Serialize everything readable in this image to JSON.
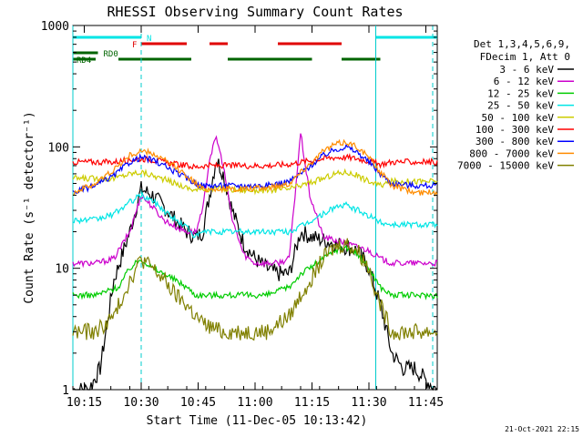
{
  "chart_data": {
    "type": "line",
    "title": "RHESSI Observing Summary Count Rates",
    "xlabel": "Start Time (11-Dec-05 10:13:42)",
    "ylabel": "Count Rate (s⁻¹ detector⁻¹)",
    "x_range_minutes": [
      10.2,
      11.8
    ],
    "x_ticks": [
      {
        "value": 10.25,
        "label": "10:15"
      },
      {
        "value": 10.5,
        "label": "10:30"
      },
      {
        "value": 10.75,
        "label": "10:45"
      },
      {
        "value": 11.0,
        "label": "11:00"
      },
      {
        "value": 11.25,
        "label": "11:15"
      },
      {
        "value": 11.5,
        "label": "11:30"
      },
      {
        "value": 11.75,
        "label": "11:45"
      }
    ],
    "ylim": [
      1,
      1000
    ],
    "y_scale": "log",
    "y_ticks": [
      {
        "value": 1,
        "label": "1"
      },
      {
        "value": 10,
        "label": "10"
      },
      {
        "value": 100,
        "label": "100"
      },
      {
        "value": 1000,
        "label": "1000"
      }
    ],
    "legend_header": [
      "Det 1,3,4,5,6,9,",
      "FDecim 1, Att 0"
    ],
    "series": [
      {
        "name": "3 - 6 keV",
        "color": "#000000",
        "points": [
          [
            10.2,
            1
          ],
          [
            10.27,
            1
          ],
          [
            10.32,
            1.5
          ],
          [
            10.38,
            8
          ],
          [
            10.45,
            20
          ],
          [
            10.5,
            45
          ],
          [
            10.55,
            40
          ],
          [
            10.6,
            32
          ],
          [
            10.65,
            25
          ],
          [
            10.7,
            20
          ],
          [
            10.74,
            18
          ],
          [
            10.77,
            20
          ],
          [
            10.8,
            40
          ],
          [
            10.83,
            80
          ],
          [
            10.86,
            60
          ],
          [
            10.9,
            30
          ],
          [
            10.95,
            16
          ],
          [
            11.0,
            12
          ],
          [
            11.05,
            10
          ],
          [
            11.1,
            9
          ],
          [
            11.15,
            9
          ],
          [
            11.2,
            20
          ],
          [
            11.25,
            18
          ],
          [
            11.3,
            17
          ],
          [
            11.35,
            16
          ],
          [
            11.4,
            15
          ],
          [
            11.45,
            14
          ],
          [
            11.5,
            10
          ],
          [
            11.55,
            5
          ],
          [
            11.6,
            2
          ],
          [
            11.65,
            1.5
          ],
          [
            11.7,
            1.5
          ],
          [
            11.75,
            1.2
          ],
          [
            11.8,
            1
          ]
        ]
      },
      {
        "name": "6 - 12 keV",
        "color": "#cc00cc",
        "points": [
          [
            10.2,
            11
          ],
          [
            10.3,
            11
          ],
          [
            10.38,
            12
          ],
          [
            10.45,
            20
          ],
          [
            10.5,
            40
          ],
          [
            10.55,
            32
          ],
          [
            10.6,
            25
          ],
          [
            10.65,
            22
          ],
          [
            10.7,
            20
          ],
          [
            10.74,
            20
          ],
          [
            10.77,
            30
          ],
          [
            10.8,
            80
          ],
          [
            10.83,
            120
          ],
          [
            10.86,
            70
          ],
          [
            10.9,
            25
          ],
          [
            10.95,
            13
          ],
          [
            11.0,
            11
          ],
          [
            11.05,
            11
          ],
          [
            11.1,
            11
          ],
          [
            11.15,
            12
          ],
          [
            11.2,
            130
          ],
          [
            11.24,
            40
          ],
          [
            11.3,
            18
          ],
          [
            11.35,
            17
          ],
          [
            11.4,
            16
          ],
          [
            11.45,
            15
          ],
          [
            11.5,
            14
          ],
          [
            11.55,
            12
          ],
          [
            11.6,
            11
          ],
          [
            11.7,
            11
          ],
          [
            11.8,
            11
          ]
        ]
      },
      {
        "name": "12 - 25 keV",
        "color": "#00cc00",
        "points": [
          [
            10.2,
            6
          ],
          [
            10.3,
            6
          ],
          [
            10.4,
            7
          ],
          [
            10.45,
            10
          ],
          [
            10.5,
            12
          ],
          [
            10.55,
            10
          ],
          [
            10.6,
            9
          ],
          [
            10.65,
            8
          ],
          [
            10.7,
            7
          ],
          [
            10.74,
            6
          ],
          [
            10.77,
            6
          ],
          [
            10.85,
            6
          ],
          [
            10.95,
            6
          ],
          [
            11.05,
            6
          ],
          [
            11.15,
            7
          ],
          [
            11.2,
            9
          ],
          [
            11.3,
            12
          ],
          [
            11.35,
            14
          ],
          [
            11.4,
            15
          ],
          [
            11.45,
            13
          ],
          [
            11.5,
            10
          ],
          [
            11.55,
            7
          ],
          [
            11.6,
            6
          ],
          [
            11.7,
            6
          ],
          [
            11.8,
            6
          ]
        ]
      },
      {
        "name": "25 - 50 keV",
        "color": "#00e5e5",
        "points": [
          [
            10.2,
            25
          ],
          [
            10.3,
            25
          ],
          [
            10.38,
            28
          ],
          [
            10.45,
            35
          ],
          [
            10.5,
            40
          ],
          [
            10.55,
            36
          ],
          [
            10.6,
            30
          ],
          [
            10.65,
            25
          ],
          [
            10.7,
            22
          ],
          [
            10.74,
            18
          ],
          [
            10.77,
            20
          ],
          [
            10.85,
            20
          ],
          [
            10.95,
            20
          ],
          [
            11.05,
            20
          ],
          [
            11.15,
            20
          ],
          [
            11.2,
            22
          ],
          [
            11.3,
            28
          ],
          [
            11.35,
            32
          ],
          [
            11.4,
            33
          ],
          [
            11.45,
            30
          ],
          [
            11.5,
            27
          ],
          [
            11.55,
            24
          ],
          [
            11.6,
            23
          ],
          [
            11.7,
            23
          ],
          [
            11.8,
            23
          ]
        ]
      },
      {
        "name": "50 - 100 keV",
        "color": "#cccc00",
        "points": [
          [
            10.2,
            55
          ],
          [
            10.3,
            55
          ],
          [
            10.38,
            55
          ],
          [
            10.45,
            60
          ],
          [
            10.5,
            62
          ],
          [
            10.55,
            58
          ],
          [
            10.6,
            54
          ],
          [
            10.65,
            50
          ],
          [
            10.7,
            46
          ],
          [
            10.74,
            44
          ],
          [
            10.77,
            45
          ],
          [
            10.85,
            45
          ],
          [
            10.95,
            44
          ],
          [
            11.05,
            44
          ],
          [
            11.15,
            45
          ],
          [
            11.2,
            48
          ],
          [
            11.3,
            55
          ],
          [
            11.35,
            60
          ],
          [
            11.4,
            62
          ],
          [
            11.45,
            58
          ],
          [
            11.5,
            52
          ],
          [
            11.55,
            48
          ],
          [
            11.6,
            52
          ],
          [
            11.7,
            52
          ],
          [
            11.8,
            52
          ]
        ]
      },
      {
        "name": "100 - 300 keV",
        "color": "#ff0000",
        "points": [
          [
            10.2,
            75
          ],
          [
            10.3,
            75
          ],
          [
            10.38,
            75
          ],
          [
            10.45,
            78
          ],
          [
            10.5,
            80
          ],
          [
            10.55,
            78
          ],
          [
            10.6,
            75
          ],
          [
            10.65,
            72
          ],
          [
            10.7,
            70
          ],
          [
            10.74,
            68
          ],
          [
            10.77,
            70
          ],
          [
            10.85,
            70
          ],
          [
            10.95,
            70
          ],
          [
            11.05,
            70
          ],
          [
            11.15,
            72
          ],
          [
            11.2,
            75
          ],
          [
            11.3,
            80
          ],
          [
            11.35,
            82
          ],
          [
            11.4,
            82
          ],
          [
            11.45,
            80
          ],
          [
            11.5,
            76
          ],
          [
            11.55,
            72
          ],
          [
            11.6,
            75
          ],
          [
            11.7,
            75
          ],
          [
            11.8,
            75
          ]
        ]
      },
      {
        "name": "300 - 800 keV",
        "color": "#0000ff",
        "points": [
          [
            10.2,
            42
          ],
          [
            10.3,
            48
          ],
          [
            10.38,
            58
          ],
          [
            10.45,
            75
          ],
          [
            10.5,
            82
          ],
          [
            10.55,
            78
          ],
          [
            10.6,
            70
          ],
          [
            10.65,
            62
          ],
          [
            10.7,
            55
          ],
          [
            10.74,
            50
          ],
          [
            10.77,
            48
          ],
          [
            10.85,
            48
          ],
          [
            10.95,
            48
          ],
          [
            11.05,
            48
          ],
          [
            11.15,
            52
          ],
          [
            11.2,
            60
          ],
          [
            11.3,
            85
          ],
          [
            11.35,
            95
          ],
          [
            11.4,
            100
          ],
          [
            11.45,
            90
          ],
          [
            11.5,
            75
          ],
          [
            11.55,
            60
          ],
          [
            11.6,
            50
          ],
          [
            11.7,
            48
          ],
          [
            11.8,
            48
          ]
        ]
      },
      {
        "name": "800 - 7000 keV",
        "color": "#ff8c00",
        "points": [
          [
            10.2,
            42
          ],
          [
            10.3,
            50
          ],
          [
            10.38,
            65
          ],
          [
            10.45,
            85
          ],
          [
            10.5,
            92
          ],
          [
            10.55,
            88
          ],
          [
            10.6,
            78
          ],
          [
            10.65,
            68
          ],
          [
            10.7,
            58
          ],
          [
            10.74,
            50
          ],
          [
            10.77,
            45
          ],
          [
            10.85,
            45
          ],
          [
            10.95,
            45
          ],
          [
            11.05,
            46
          ],
          [
            11.15,
            50
          ],
          [
            11.2,
            62
          ],
          [
            11.3,
            92
          ],
          [
            11.35,
            105
          ],
          [
            11.4,
            110
          ],
          [
            11.45,
            100
          ],
          [
            11.5,
            82
          ],
          [
            11.55,
            62
          ],
          [
            11.6,
            48
          ],
          [
            11.7,
            42
          ],
          [
            11.8,
            42
          ]
        ]
      },
      {
        "name": "7000 - 15000 keV",
        "color": "#808000",
        "points": [
          [
            10.2,
            3
          ],
          [
            10.3,
            3
          ],
          [
            10.38,
            4
          ],
          [
            10.45,
            8
          ],
          [
            10.5,
            12
          ],
          [
            10.55,
            10
          ],
          [
            10.6,
            8
          ],
          [
            10.65,
            6
          ],
          [
            10.7,
            5
          ],
          [
            10.74,
            4
          ],
          [
            10.77,
            3.5
          ],
          [
            10.85,
            3
          ],
          [
            10.95,
            3
          ],
          [
            11.05,
            3
          ],
          [
            11.15,
            4
          ],
          [
            11.2,
            6
          ],
          [
            11.3,
            12
          ],
          [
            11.35,
            15
          ],
          [
            11.4,
            16
          ],
          [
            11.45,
            14
          ],
          [
            11.5,
            10
          ],
          [
            11.55,
            5
          ],
          [
            11.6,
            3
          ],
          [
            11.7,
            3
          ],
          [
            11.8,
            3
          ]
        ]
      }
    ],
    "flag_bars": [
      {
        "label": "N",
        "color": "#00e5e5",
        "level": 1,
        "intervals": [
          [
            10.2,
            10.5
          ],
          [
            11.53,
            11.8
          ]
        ]
      },
      {
        "label": "F",
        "color": "#e00000",
        "level": 2,
        "intervals": [
          [
            10.5,
            10.7
          ],
          [
            10.8,
            10.88
          ],
          [
            11.1,
            11.38
          ]
        ]
      },
      {
        "label": "RD0",
        "color": "#006400",
        "level": 3,
        "intervals": [
          [
            10.2,
            10.31
          ]
        ]
      },
      {
        "label": "RD4",
        "color": "#006400",
        "level": 4,
        "intervals": [
          [
            10.2,
            10.3
          ],
          [
            10.4,
            10.72
          ],
          [
            10.88,
            11.25
          ],
          [
            11.38,
            11.55
          ]
        ]
      }
    ],
    "vlines": [
      {
        "x": 10.5,
        "color": "#00cccc",
        "style": "dashed"
      },
      {
        "x": 11.53,
        "color": "#00cccc",
        "style": "solid"
      },
      {
        "x": 11.78,
        "color": "#00cccc",
        "style": "dashed"
      },
      {
        "x": 10.2,
        "color": "#00cccc",
        "style": "solid"
      }
    ]
  },
  "footer_date": "21-Oct-2021 22:15"
}
